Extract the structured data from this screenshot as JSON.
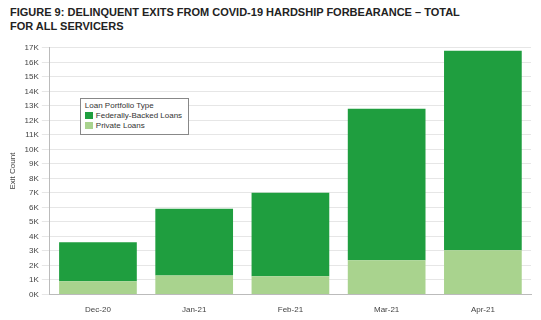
{
  "chart_data": {
    "type": "bar",
    "title": "FIGURE 9: DELINQUENT EXITS FROM COVID-19 HARDSHIP FORBEARANCE – TOTAL FOR ALL SERVICERS",
    "y_label": "Exit Count",
    "legend_title": "Loan Portfolio Type",
    "categories": [
      "Dec-20",
      "Jan-21",
      "Feb-21",
      "Mar-21",
      "Apr-21"
    ],
    "series": [
      {
        "name": "Federally-Backed Loans",
        "color": "#1f9e3f",
        "values": [
          2700,
          4600,
          5750,
          10450,
          13750
        ]
      },
      {
        "name": "Private Loans",
        "color": "#a9d38e",
        "values": [
          900,
          1300,
          1250,
          2350,
          3050
        ]
      }
    ],
    "stacked": true,
    "legend": "upper left",
    "grid": true,
    "ylim": [
      0,
      17000
    ],
    "yticks": [
      {
        "value": 0,
        "label": "0K"
      },
      {
        "value": 1000,
        "label": "1K"
      },
      {
        "value": 2000,
        "label": "2K"
      },
      {
        "value": 3000,
        "label": "3K"
      },
      {
        "value": 4000,
        "label": "4K"
      },
      {
        "value": 5000,
        "label": "5K"
      },
      {
        "value": 6000,
        "label": "6K"
      },
      {
        "value": 7000,
        "label": "7K"
      },
      {
        "value": 8000,
        "label": "8K"
      },
      {
        "value": 9000,
        "label": "9K"
      },
      {
        "value": 10000,
        "label": "10K"
      },
      {
        "value": 11000,
        "label": "11K"
      },
      {
        "value": 12000,
        "label": "12K"
      },
      {
        "value": 13000,
        "label": "13K"
      },
      {
        "value": 14000,
        "label": "14K"
      },
      {
        "value": 15000,
        "label": "15K"
      },
      {
        "value": 16000,
        "label": "16K"
      },
      {
        "value": 17000,
        "label": "17K"
      }
    ]
  }
}
